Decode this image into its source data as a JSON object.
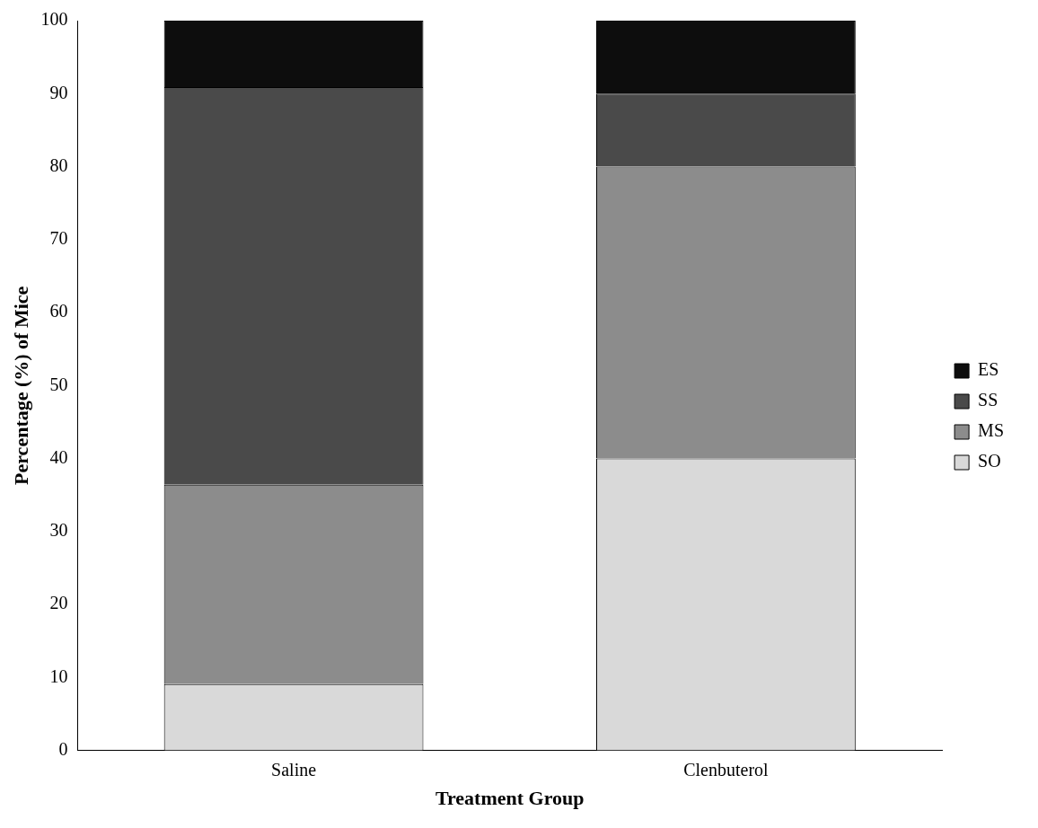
{
  "chart_data": {
    "type": "bar",
    "stacked": true,
    "categories": [
      "Saline",
      "Clenbuterol"
    ],
    "series": [
      {
        "name": "SO",
        "color": "#d9d9d9",
        "values": [
          9.1,
          40
        ]
      },
      {
        "name": "MS",
        "color": "#8c8c8c",
        "values": [
          27.3,
          40
        ]
      },
      {
        "name": "SS",
        "color": "#4a4a4a",
        "values": [
          54.5,
          10
        ]
      },
      {
        "name": "ES",
        "color": "#0d0d0d",
        "values": [
          9.1,
          10
        ]
      }
    ],
    "xlabel": "Treatment Group",
    "ylabel": "Percentage (%) of Mice",
    "ylim": [
      0,
      100
    ],
    "yticks": [
      0,
      10,
      20,
      30,
      40,
      50,
      60,
      70,
      80,
      90,
      100
    ],
    "grid": false,
    "legend": "right"
  }
}
